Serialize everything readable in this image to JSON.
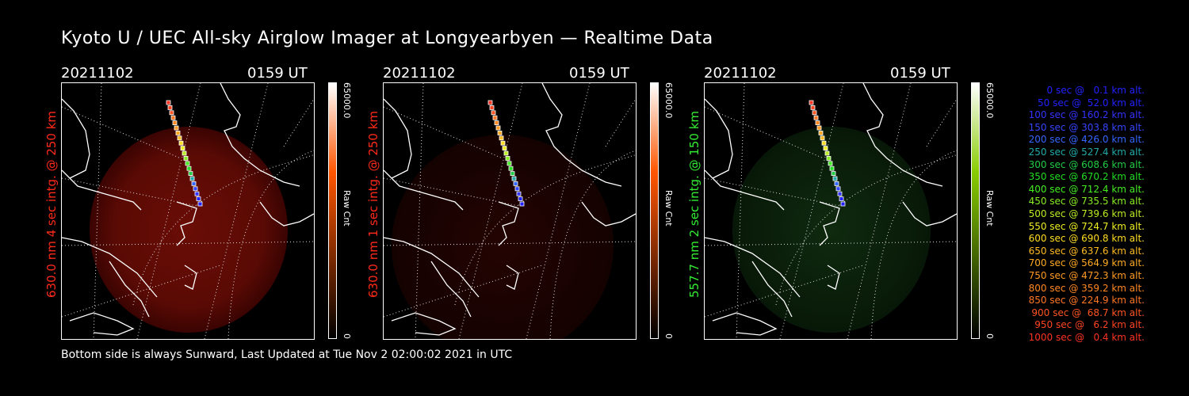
{
  "title": "Kyoto U / UEC All-sky Airglow Imager at Longyearbyen — Realtime Data",
  "footer": "Bottom side is always Sunward, Last Updated at Tue Nov  2 02:00:02 2021 in UTC",
  "panels": [
    {
      "date": "20211102",
      "time": "0159 UT",
      "label": "630.0 nm 4 sec intg. @ 250 km",
      "label_color": "#ff2a1a",
      "colorbar_max": "65000.0",
      "colorbar_min": "0",
      "colorbar_unit": "Raw Cnt",
      "glow": "red-strong"
    },
    {
      "date": "20211102",
      "time": "0159 UT",
      "label": "630.0 nm 1 sec intg. @ 250 km",
      "label_color": "#ff2a1a",
      "colorbar_max": "65000.0",
      "colorbar_min": "0",
      "colorbar_unit": "Raw Cnt",
      "glow": "red-faint"
    },
    {
      "date": "20211102",
      "time": "0159 UT",
      "label": "557.7 nm 2 sec intg. @ 150 km",
      "label_color": "#33ee33",
      "colorbar_max": "65000.0",
      "colorbar_min": "0",
      "colorbar_unit": "Raw Cnt",
      "glow": "green"
    }
  ],
  "colors": {
    "red_scale_top": "#ffffff",
    "red_scale_mid": "#ff5500",
    "red_scale_bottom": "#000000",
    "green_scale_mid": "#88cc00"
  },
  "legend": [
    {
      "text": "0 sec @   0.1 km alt.",
      "color": "#2222ff"
    },
    {
      "text": "50 sec @  52.0 km alt.",
      "color": "#2222ff"
    },
    {
      "text": "100 sec @ 160.2 km alt.",
      "color": "#3333ff"
    },
    {
      "text": "150 sec @ 303.8 km alt.",
      "color": "#3344ff"
    },
    {
      "text": "200 sec @ 426.0 km alt.",
      "color": "#3366ff"
    },
    {
      "text": "250 sec @ 527.4 km alt.",
      "color": "#22aaaa"
    },
    {
      "text": "300 sec @ 608.6 km alt.",
      "color": "#22cc44"
    },
    {
      "text": "350 sec @ 670.2 km alt.",
      "color": "#22dd22"
    },
    {
      "text": "400 sec @ 712.4 km alt.",
      "color": "#44ee22"
    },
    {
      "text": "450 sec @ 735.5 km alt.",
      "color": "#88ee22"
    },
    {
      "text": "500 sec @ 739.6 km alt.",
      "color": "#bbee22"
    },
    {
      "text": "550 sec @ 724.7 km alt.",
      "color": "#eeee22"
    },
    {
      "text": "600 sec @ 690.8 km alt.",
      "color": "#ffdd22"
    },
    {
      "text": "650 sec @ 637.6 km alt.",
      "color": "#ffbb22"
    },
    {
      "text": "700 sec @ 564.9 km alt.",
      "color": "#ffaa22"
    },
    {
      "text": "750 sec @ 472.3 km alt.",
      "color": "#ff9922"
    },
    {
      "text": "800 sec @ 359.2 km alt.",
      "color": "#ff8822"
    },
    {
      "text": "850 sec @ 224.9 km alt.",
      "color": "#ff7722"
    },
    {
      "text": "900 sec @  68.7 km alt.",
      "color": "#ff5522"
    },
    {
      "text": "950 sec @   6.2 km alt.",
      "color": "#ff4422"
    },
    {
      "text": "1000 sec @   0.4 km alt.",
      "color": "#ff3322"
    }
  ]
}
